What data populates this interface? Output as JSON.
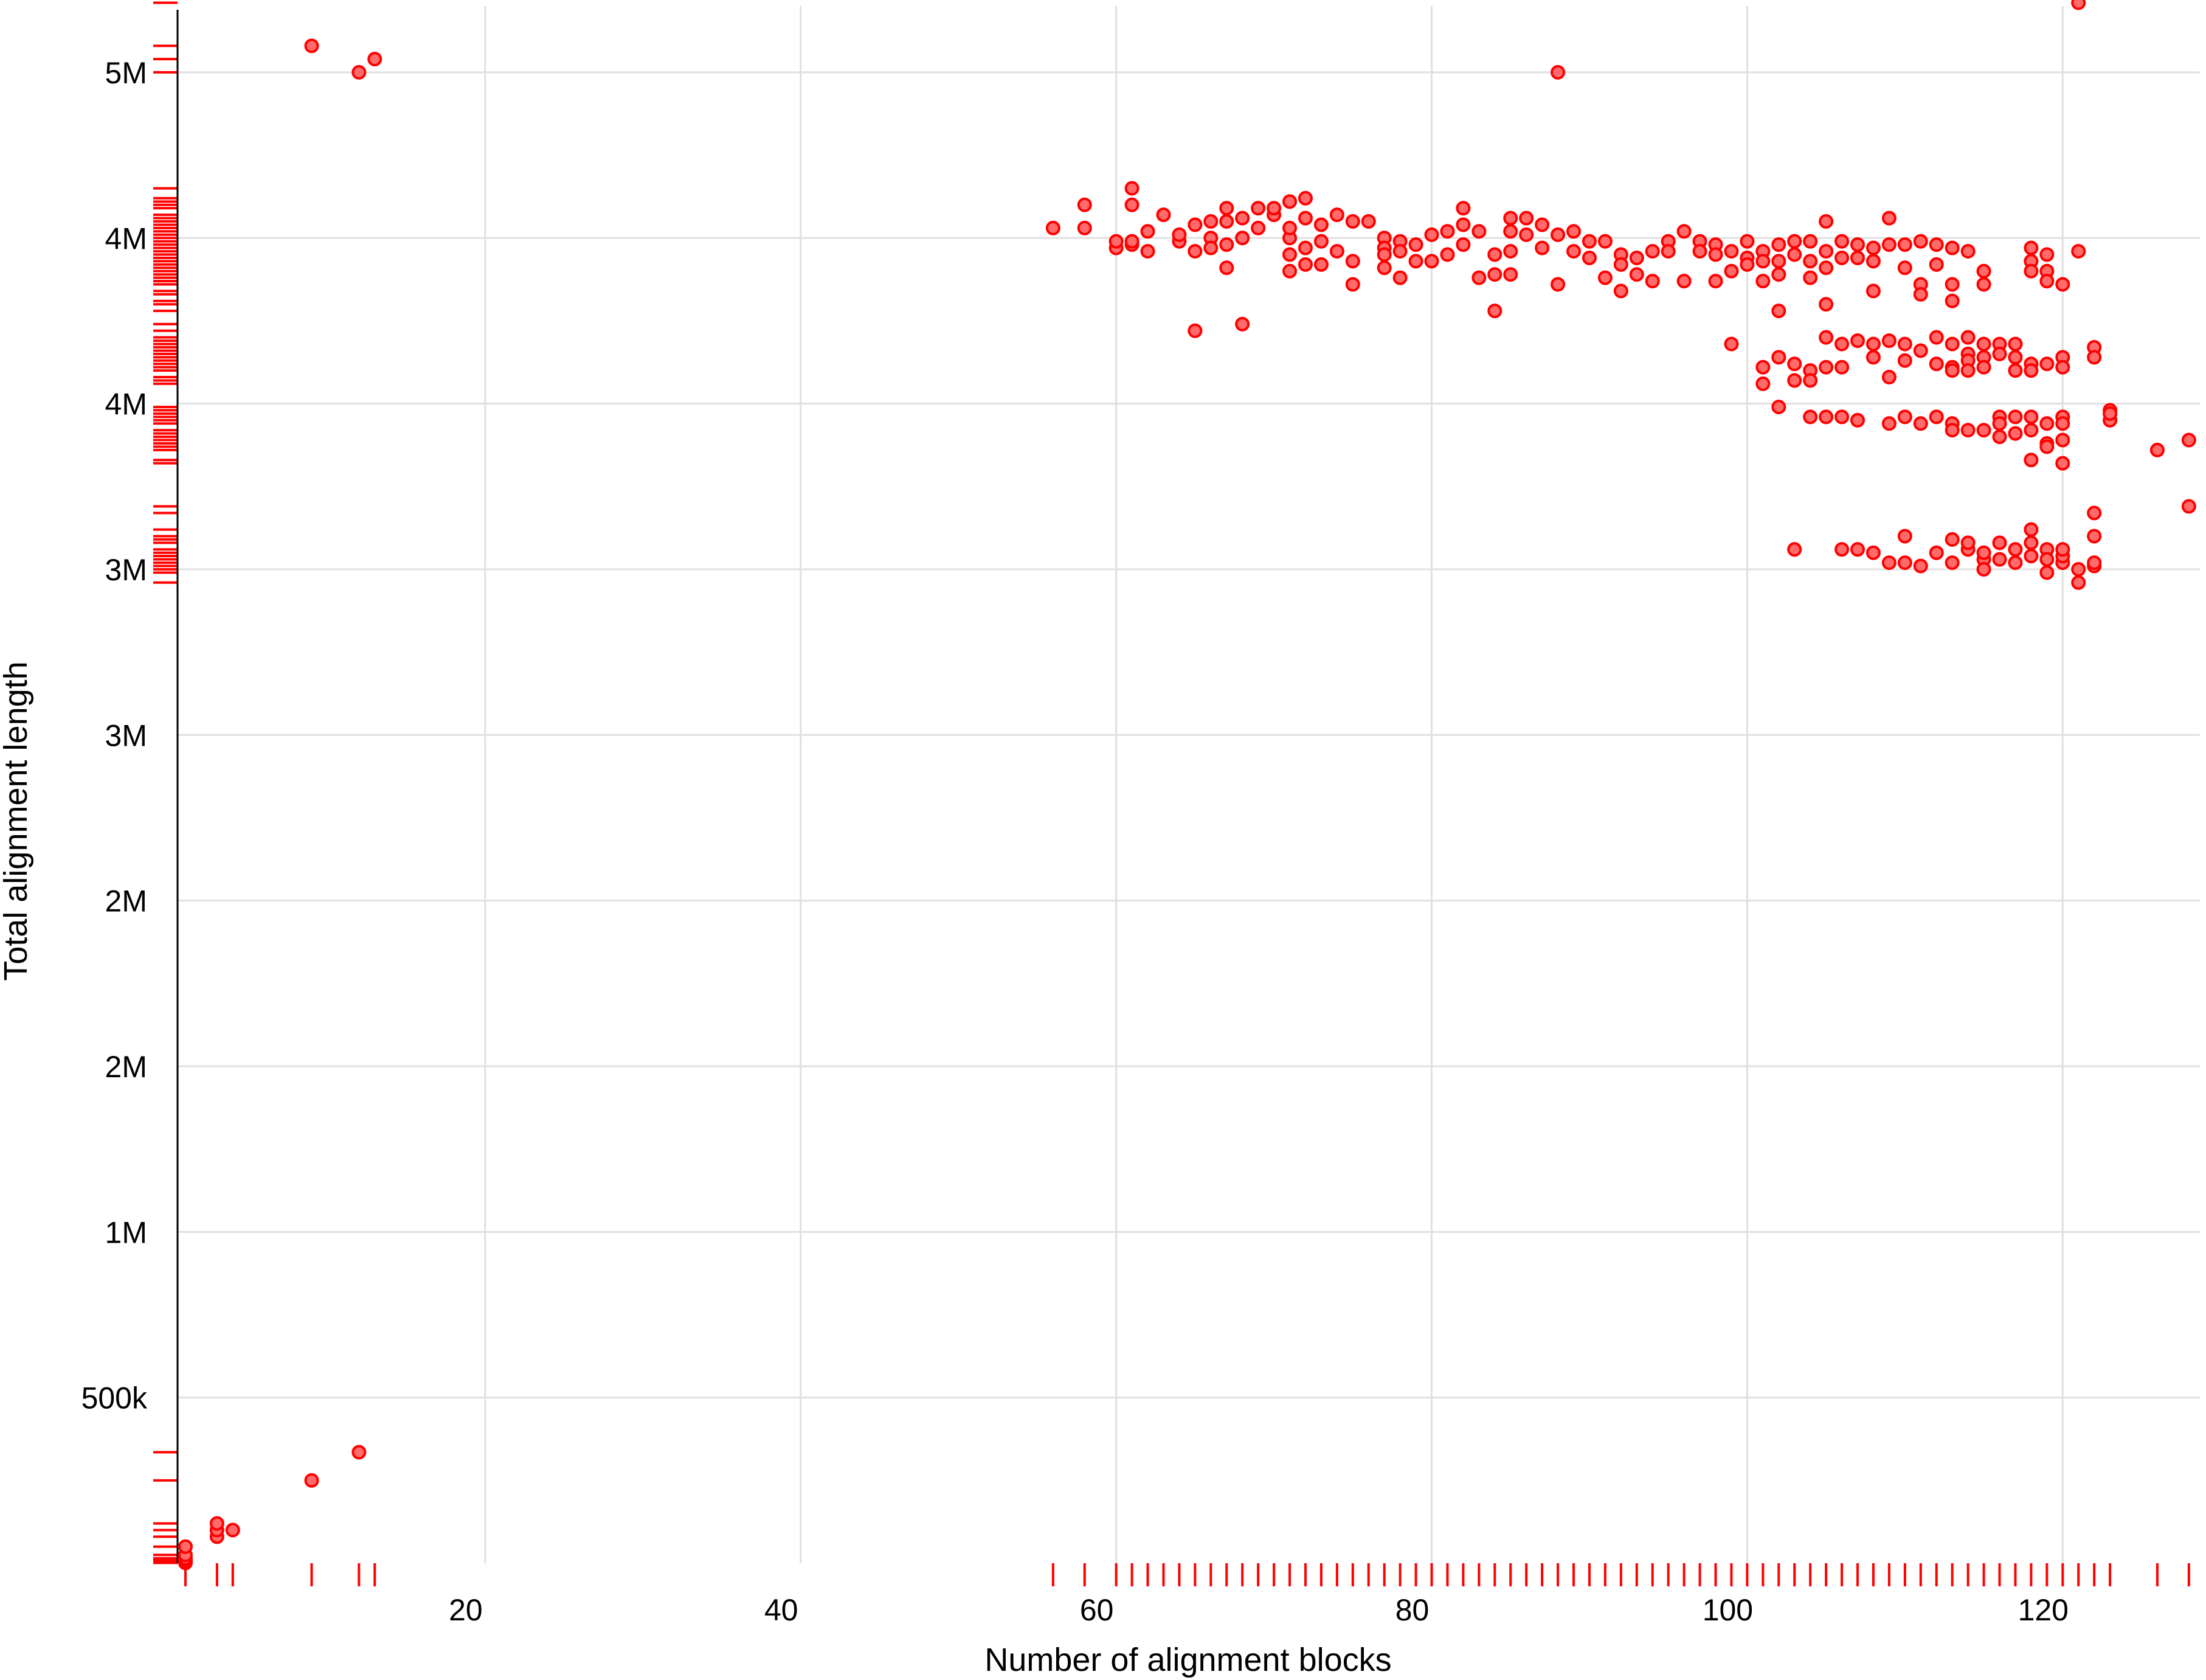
{
  "chart_data": {
    "type": "scatter",
    "xlabel": "Number of alignment blocks",
    "ylabel": "Total alignment length",
    "xlim": [
      0.5,
      128.7
    ],
    "ylim": [
      0,
      4700000
    ],
    "x_ticks": [
      {
        "value": 20,
        "label": "20"
      },
      {
        "value": 40,
        "label": "40"
      },
      {
        "value": 60,
        "label": "60"
      },
      {
        "value": 80,
        "label": "80"
      },
      {
        "value": 100,
        "label": "100"
      },
      {
        "value": 120,
        "label": "120"
      }
    ],
    "y_ticks": [
      {
        "value": 500000,
        "label": "500k"
      },
      {
        "value": 1000000,
        "label": "1M"
      },
      {
        "value": 1500000,
        "label": "2M"
      },
      {
        "value": 2000000,
        "label": "2M"
      },
      {
        "value": 2500000,
        "label": "3M"
      },
      {
        "value": 3000000,
        "label": "3M"
      },
      {
        "value": 3500000,
        "label": "4M"
      },
      {
        "value": 4000000,
        "label": "4M"
      },
      {
        "value": 4500000,
        "label": "5M"
      }
    ],
    "grid": true,
    "legend": "none",
    "rug": true,
    "colors": {
      "point_fill": "#ff6a6a",
      "point_stroke": "#ff0000",
      "rug": "#ff0000",
      "grid": "#e0e0e0"
    },
    "series": [
      {
        "points": [
          [
            1,
            1000
          ],
          [
            1,
            3000
          ],
          [
            1,
            6000
          ],
          [
            1,
            9000
          ],
          [
            1,
            15000
          ],
          [
            1,
            25000
          ],
          [
            1,
            50000
          ],
          [
            3,
            80000
          ],
          [
            3,
            100000
          ],
          [
            3,
            120000
          ],
          [
            4,
            100000
          ],
          [
            9,
            250000
          ],
          [
            12,
            335000
          ],
          [
            9,
            4580000
          ],
          [
            12,
            4500000
          ],
          [
            13,
            4540000
          ],
          [
            56,
            4030000
          ],
          [
            58,
            4030000
          ],
          [
            58,
            4100000
          ],
          [
            60,
            3970000
          ],
          [
            60,
            3990000
          ],
          [
            61,
            3980000
          ],
          [
            61,
            3990000
          ],
          [
            61,
            4100000
          ],
          [
            61,
            4150000
          ],
          [
            62,
            3960000
          ],
          [
            62,
            4020000
          ],
          [
            63,
            4070000
          ],
          [
            64,
            3990000
          ],
          [
            64,
            4010000
          ],
          [
            65,
            3960000
          ],
          [
            65,
            4040000
          ],
          [
            65,
            3720000
          ],
          [
            66,
            4050000
          ],
          [
            66,
            4000000
          ],
          [
            66,
            3970000
          ],
          [
            67,
            3980000
          ],
          [
            67,
            4050000
          ],
          [
            67,
            4090000
          ],
          [
            67,
            3910000
          ],
          [
            68,
            4000000
          ],
          [
            68,
            4060000
          ],
          [
            68,
            3740000
          ],
          [
            69,
            4030000
          ],
          [
            69,
            4090000
          ],
          [
            70,
            4070000
          ],
          [
            70,
            4090000
          ],
          [
            71,
            4000000
          ],
          [
            71,
            4030000
          ],
          [
            71,
            4110000
          ],
          [
            71,
            3950000
          ],
          [
            71,
            3900000
          ],
          [
            72,
            4060000
          ],
          [
            72,
            4120000
          ],
          [
            72,
            3970000
          ],
          [
            72,
            3920000
          ],
          [
            73,
            4040000
          ],
          [
            73,
            3920000
          ],
          [
            73,
            3990000
          ],
          [
            74,
            4070000
          ],
          [
            74,
            3960000
          ],
          [
            75,
            4050000
          ],
          [
            75,
            3930000
          ],
          [
            75,
            3860000
          ],
          [
            76,
            4050000
          ],
          [
            77,
            4000000
          ],
          [
            77,
            3970000
          ],
          [
            77,
            3950000
          ],
          [
            77,
            3910000
          ],
          [
            78,
            3990000
          ],
          [
            78,
            3960000
          ],
          [
            78,
            3880000
          ],
          [
            79,
            3980000
          ],
          [
            79,
            3930000
          ],
          [
            80,
            3930000
          ],
          [
            80,
            4010000
          ],
          [
            81,
            3950000
          ],
          [
            81,
            4020000
          ],
          [
            82,
            3980000
          ],
          [
            82,
            4040000
          ],
          [
            82,
            4090000
          ],
          [
            83,
            4020000
          ],
          [
            83,
            3880000
          ],
          [
            84,
            3950000
          ],
          [
            84,
            3890000
          ],
          [
            84,
            3780000
          ],
          [
            85,
            4060000
          ],
          [
            85,
            4020000
          ],
          [
            85,
            3960000
          ],
          [
            85,
            3890000
          ],
          [
            86,
            4060000
          ],
          [
            86,
            4010000
          ],
          [
            87,
            4040000
          ],
          [
            87,
            3970000
          ],
          [
            88,
            4010000
          ],
          [
            88,
            4500000
          ],
          [
            88,
            3860000
          ],
          [
            89,
            4020000
          ],
          [
            89,
            3960000
          ],
          [
            90,
            3990000
          ],
          [
            90,
            3940000
          ],
          [
            91,
            3990000
          ],
          [
            91,
            3880000
          ],
          [
            92,
            3950000
          ],
          [
            92,
            3920000
          ],
          [
            92,
            3840000
          ],
          [
            93,
            3940000
          ],
          [
            93,
            3890000
          ],
          [
            94,
            3960000
          ],
          [
            94,
            3870000
          ],
          [
            95,
            3990000
          ],
          [
            95,
            3960000
          ],
          [
            96,
            4020000
          ],
          [
            96,
            3870000
          ],
          [
            97,
            3990000
          ],
          [
            97,
            3960000
          ],
          [
            98,
            3980000
          ],
          [
            98,
            3950000
          ],
          [
            98,
            3870000
          ],
          [
            99,
            3960000
          ],
          [
            99,
            3900000
          ],
          [
            99,
            3680000
          ],
          [
            100,
            3990000
          ],
          [
            100,
            3940000
          ],
          [
            100,
            3920000
          ],
          [
            101,
            3960000
          ],
          [
            101,
            3930000
          ],
          [
            101,
            3870000
          ],
          [
            101,
            3610000
          ],
          [
            101,
            3560000
          ],
          [
            102,
            3980000
          ],
          [
            102,
            3930000
          ],
          [
            102,
            3890000
          ],
          [
            102,
            3780000
          ],
          [
            102,
            3640000
          ],
          [
            102,
            3490000
          ],
          [
            103,
            3990000
          ],
          [
            103,
            3950000
          ],
          [
            103,
            3620000
          ],
          [
            103,
            3570000
          ],
          [
            104,
            3990000
          ],
          [
            104,
            3930000
          ],
          [
            104,
            3880000
          ],
          [
            104,
            3600000
          ],
          [
            104,
            3570000
          ],
          [
            104,
            3460000
          ],
          [
            105,
            4050000
          ],
          [
            105,
            3960000
          ],
          [
            105,
            3910000
          ],
          [
            105,
            3800000
          ],
          [
            105,
            3700000
          ],
          [
            105,
            3610000
          ],
          [
            105,
            3460000
          ],
          [
            106,
            3990000
          ],
          [
            106,
            3940000
          ],
          [
            106,
            3680000
          ],
          [
            106,
            3610000
          ],
          [
            106,
            3460000
          ],
          [
            107,
            3980000
          ],
          [
            107,
            3940000
          ],
          [
            107,
            3690000
          ],
          [
            107,
            3450000
          ],
          [
            108,
            3970000
          ],
          [
            108,
            3930000
          ],
          [
            108,
            3680000
          ],
          [
            108,
            3640000
          ],
          [
            108,
            3840000
          ],
          [
            109,
            4060000
          ],
          [
            109,
            3980000
          ],
          [
            109,
            3690000
          ],
          [
            109,
            3580000
          ],
          [
            109,
            3440000
          ],
          [
            110,
            3980000
          ],
          [
            110,
            3910000
          ],
          [
            110,
            3680000
          ],
          [
            110,
            3630000
          ],
          [
            110,
            3460000
          ],
          [
            111,
            3990000
          ],
          [
            111,
            3860000
          ],
          [
            111,
            3830000
          ],
          [
            111,
            3660000
          ],
          [
            111,
            3440000
          ],
          [
            112,
            3980000
          ],
          [
            112,
            3920000
          ],
          [
            112,
            3700000
          ],
          [
            112,
            3620000
          ],
          [
            112,
            3460000
          ],
          [
            113,
            3970000
          ],
          [
            113,
            3860000
          ],
          [
            113,
            3810000
          ],
          [
            113,
            3680000
          ],
          [
            113,
            3610000
          ],
          [
            113,
            3600000
          ],
          [
            113,
            3440000
          ],
          [
            113,
            3420000
          ],
          [
            114,
            3960000
          ],
          [
            114,
            3700000
          ],
          [
            114,
            3650000
          ],
          [
            114,
            3630000
          ],
          [
            114,
            3600000
          ],
          [
            114,
            3420000
          ],
          [
            115,
            3900000
          ],
          [
            115,
            3860000
          ],
          [
            115,
            3680000
          ],
          [
            115,
            3640000
          ],
          [
            115,
            3610000
          ],
          [
            115,
            3420000
          ],
          [
            116,
            3680000
          ],
          [
            116,
            3650000
          ],
          [
            116,
            3460000
          ],
          [
            116,
            3440000
          ],
          [
            116,
            3400000
          ],
          [
            117,
            3680000
          ],
          [
            117,
            3640000
          ],
          [
            117,
            3600000
          ],
          [
            117,
            3460000
          ],
          [
            117,
            3410000
          ],
          [
            118,
            3970000
          ],
          [
            118,
            3930000
          ],
          [
            118,
            3900000
          ],
          [
            118,
            3620000
          ],
          [
            118,
            3600000
          ],
          [
            118,
            3460000
          ],
          [
            118,
            3420000
          ],
          [
            118,
            3330000
          ],
          [
            119,
            3950000
          ],
          [
            119,
            3900000
          ],
          [
            119,
            3870000
          ],
          [
            119,
            3620000
          ],
          [
            119,
            3440000
          ],
          [
            119,
            3380000
          ],
          [
            119,
            3370000
          ],
          [
            120,
            3860000
          ],
          [
            120,
            3640000
          ],
          [
            120,
            3610000
          ],
          [
            120,
            3460000
          ],
          [
            120,
            3440000
          ],
          [
            120,
            3390000
          ],
          [
            120,
            3320000
          ],
          [
            121,
            4710000
          ],
          [
            121,
            3960000
          ],
          [
            122,
            3670000
          ],
          [
            122,
            3640000
          ],
          [
            122,
            3170000
          ],
          [
            122,
            3010000
          ],
          [
            122,
            3100000
          ],
          [
            122,
            3020000
          ],
          [
            103,
            3060000
          ],
          [
            106,
            3060000
          ],
          [
            107,
            3060000
          ],
          [
            108,
            3050000
          ],
          [
            109,
            3020000
          ],
          [
            110,
            3020000
          ],
          [
            110,
            3100000
          ],
          [
            111,
            3010000
          ],
          [
            112,
            3050000
          ],
          [
            113,
            3090000
          ],
          [
            113,
            3020000
          ],
          [
            114,
            3060000
          ],
          [
            114,
            3080000
          ],
          [
            115,
            3030000
          ],
          [
            115,
            3050000
          ],
          [
            115,
            3000000
          ],
          [
            116,
            3080000
          ],
          [
            116,
            3030000
          ],
          [
            117,
            3060000
          ],
          [
            117,
            3020000
          ],
          [
            118,
            3080000
          ],
          [
            118,
            3040000
          ],
          [
            118,
            3120000
          ],
          [
            119,
            3060000
          ],
          [
            119,
            3030000
          ],
          [
            119,
            2990000
          ],
          [
            120,
            3020000
          ],
          [
            120,
            3040000
          ],
          [
            120,
            3060000
          ],
          [
            121,
            3000000
          ],
          [
            121,
            2960000
          ],
          [
            123,
            3480000
          ],
          [
            123,
            3450000
          ],
          [
            123,
            3470000
          ],
          [
            126,
            3360000
          ],
          [
            128,
            3190000
          ],
          [
            128,
            3390000
          ]
        ]
      }
    ]
  }
}
